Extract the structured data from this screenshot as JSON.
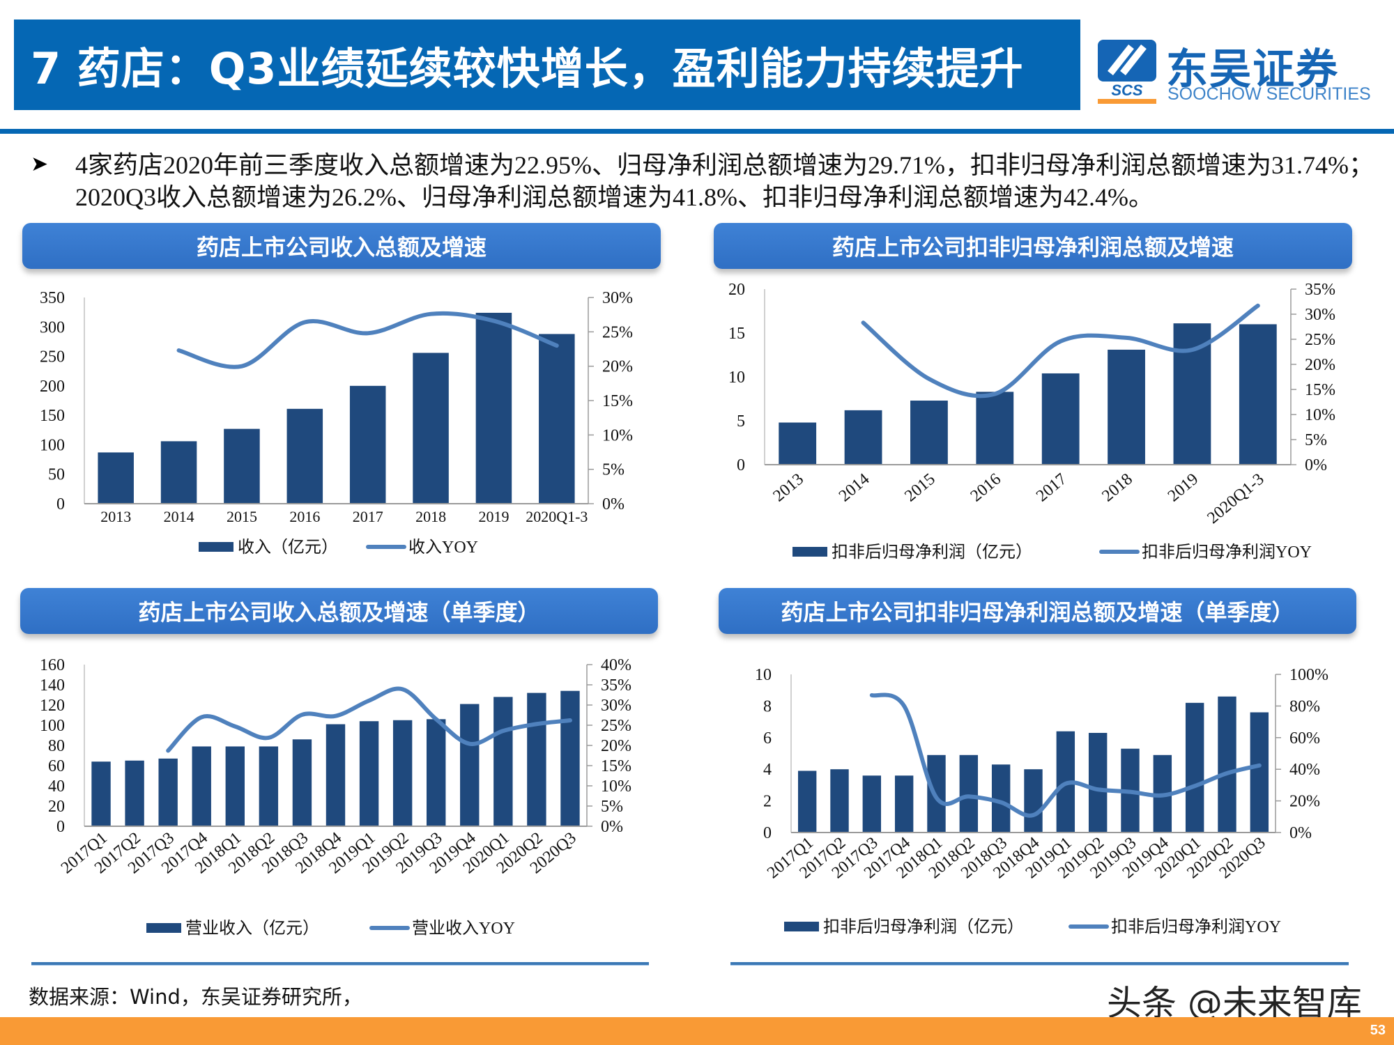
{
  "header": {
    "title": "7 药店：Q3业绩延续较快增长，盈利能力持续提升",
    "logo_cn": "东吴证券",
    "logo_en": "SOOCHOW SECURITIES",
    "logo_mark": "SCS",
    "brand_color": "#0567b4"
  },
  "summary": {
    "bullet_icon": "arrowhead-bullet-icon",
    "text": "4家药店2020年前三季度收入总额增速为22.95%、归母净利润总额增速为29.71%，扣非归母净利润总额增速为31.74%；2020Q3收入总额增速为26.2%、归母净利润总额增速为41.8%、扣非归母净利润总额增速为42.4%。"
  },
  "colors": {
    "bar": "#1f497d",
    "line": "#4f81bd",
    "footer": "#f99a35"
  },
  "chart_data": [
    {
      "type": "bar+line",
      "title": "药店上市公司收入总额及增速",
      "categories": [
        "2013",
        "2014",
        "2015",
        "2016",
        "2017",
        "2018",
        "2019",
        "2020Q1-3"
      ],
      "bar_series": {
        "name": "收入（亿元）",
        "values": [
          87,
          106,
          127,
          161,
          200,
          256,
          324,
          288
        ]
      },
      "line_series": {
        "name": "收入YOY",
        "values": [
          null,
          22.3,
          20.0,
          26.4,
          24.8,
          27.6,
          26.6,
          23.0
        ]
      },
      "ylim_left": [
        0,
        350
      ],
      "ylim_right": [
        0,
        30
      ],
      "yticks_left": [
        "0",
        "50",
        "100",
        "150",
        "200",
        "250",
        "300",
        "350"
      ],
      "yticks_right": [
        "0%",
        "5%",
        "10%",
        "15%",
        "20%",
        "25%",
        "30%"
      ],
      "grid": false,
      "legend": "bottom"
    },
    {
      "type": "bar+line",
      "title": "药店上市公司扣非归母净利润总额及增速",
      "categories": [
        "2013",
        "2014",
        "2015",
        "2016",
        "2017",
        "2018",
        "2019",
        "2020Q1-3"
      ],
      "bar_series": {
        "name": "扣非后归母净利润（亿元）",
        "values": [
          4.8,
          6.2,
          7.3,
          8.3,
          10.4,
          13.1,
          16.1,
          16.0
        ]
      },
      "line_series": {
        "name": "扣非后归母净利润YOY",
        "values": [
          null,
          28.3,
          17.1,
          14.1,
          24.6,
          25.3,
          22.9,
          31.7
        ]
      },
      "ylim_left": [
        0,
        20
      ],
      "ylim_right": [
        0,
        35
      ],
      "yticks_left": [
        "0",
        "5",
        "10",
        "15",
        "20"
      ],
      "yticks_right": [
        "0%",
        "5%",
        "10%",
        "15%",
        "20%",
        "25%",
        "30%",
        "35%"
      ],
      "grid": false,
      "legend": "bottom"
    },
    {
      "type": "bar+line",
      "title": "药店上市公司收入总额及增速（单季度）",
      "categories": [
        "2017Q1",
        "2017Q2",
        "2017Q3",
        "2017Q4",
        "2018Q1",
        "2018Q2",
        "2018Q3",
        "2018Q4",
        "2019Q1",
        "2019Q2",
        "2019Q3",
        "2019Q4",
        "2020Q1",
        "2020Q2",
        "2020Q3"
      ],
      "bar_series": {
        "name": "营业收入（亿元）",
        "values": [
          64,
          65,
          67,
          79,
          79,
          79,
          86,
          101,
          104,
          105,
          106,
          121,
          128,
          132,
          134
        ]
      },
      "line_series": {
        "name": "营业收入YOY",
        "values": [
          null,
          null,
          18.7,
          27.0,
          24.7,
          21.9,
          27.6,
          27.3,
          31.1,
          33.9,
          26.5,
          20.4,
          23.6,
          25.3,
          26.2
        ]
      },
      "ylim_left": [
        0,
        160
      ],
      "ylim_right": [
        0,
        40
      ],
      "yticks_left": [
        "0",
        "20",
        "40",
        "60",
        "80",
        "100",
        "120",
        "140",
        "160"
      ],
      "yticks_right": [
        "0%",
        "5%",
        "10%",
        "15%",
        "20%",
        "25%",
        "30%",
        "35%",
        "40%"
      ],
      "grid": false,
      "legend": "bottom"
    },
    {
      "type": "bar+line",
      "title": "药店上市公司扣非归母净利润总额及增速（单季度）",
      "categories": [
        "2017Q1",
        "2017Q2",
        "2017Q3",
        "2017Q4",
        "2018Q1",
        "2018Q2",
        "2018Q3",
        "2018Q4",
        "2019Q1",
        "2019Q2",
        "2019Q3",
        "2019Q4",
        "2020Q1",
        "2020Q2",
        "2020Q3"
      ],
      "bar_series": {
        "name": "扣非后归母净利润（亿元）",
        "values": [
          3.9,
          4.0,
          3.6,
          3.6,
          4.9,
          4.9,
          4.3,
          4.0,
          6.4,
          6.3,
          5.3,
          4.9,
          8.2,
          8.6,
          7.6
        ]
      },
      "line_series": {
        "name": "扣非后归母净利润YOY",
        "values": [
          null,
          null,
          86.8,
          80.0,
          22.0,
          22.8,
          19.1,
          11.0,
          30.9,
          27.2,
          25.7,
          23.5,
          29.4,
          37.5,
          42.4
        ]
      },
      "ylim_left": [
        0,
        10
      ],
      "ylim_right": [
        0,
        100
      ],
      "yticks_left": [
        "0",
        "2",
        "4",
        "6",
        "8",
        "10"
      ],
      "yticks_right": [
        "0%",
        "20%",
        "40%",
        "60%",
        "80%",
        "100%"
      ],
      "grid": false,
      "legend": "bottom"
    }
  ],
  "footer": {
    "source": "数据来源：Wind，东吴证券研究所，",
    "watermark": "头条 @未来智库",
    "page_number": "53"
  }
}
